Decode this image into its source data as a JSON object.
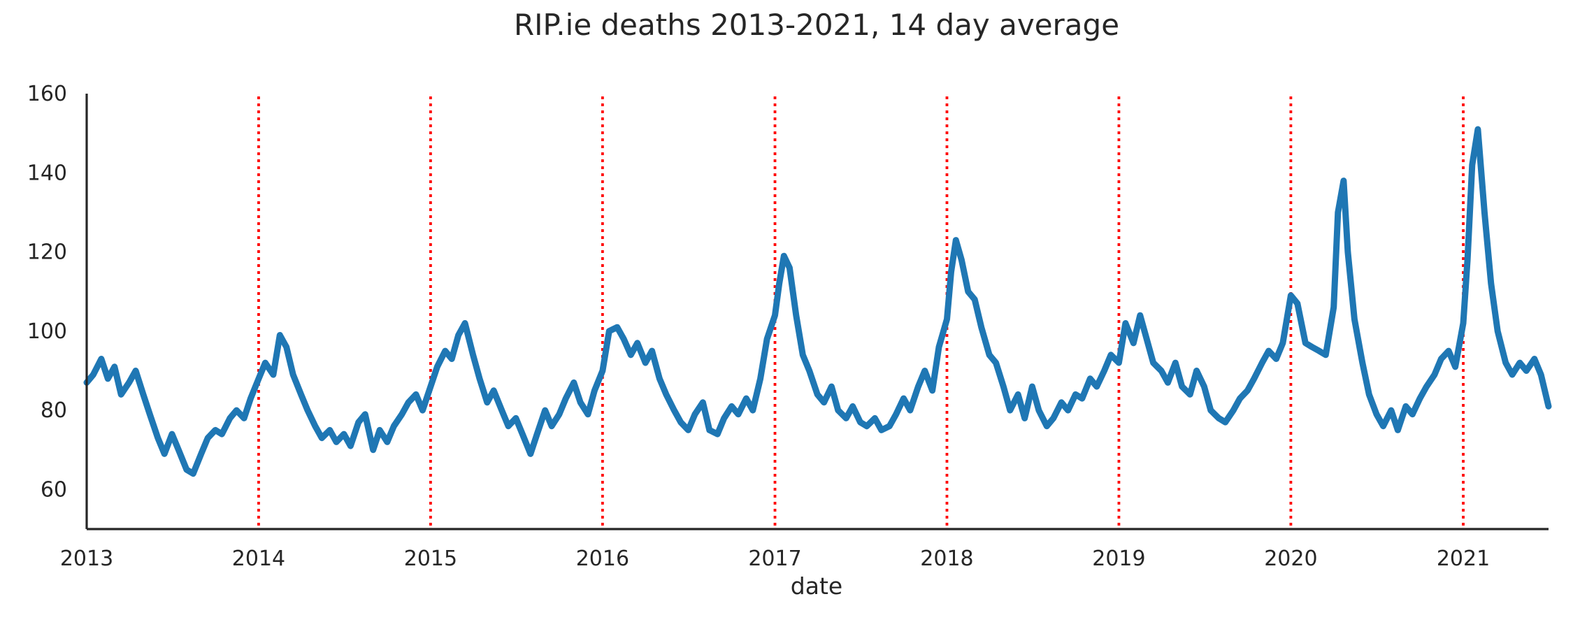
{
  "chart_data": {
    "type": "line",
    "title": "RIP.ie deaths 2013-2021, 14 day average",
    "xlabel": "date",
    "ylabel": "",
    "xlim": [
      "2013-01-01",
      "2021-07-01"
    ],
    "ylim": [
      50,
      160
    ],
    "x_ticks": [
      "2013",
      "2014",
      "2015",
      "2016",
      "2017",
      "2018",
      "2019",
      "2020",
      "2021"
    ],
    "y_ticks": [
      60,
      80,
      100,
      120,
      140,
      160
    ],
    "grid": false,
    "legend": "none",
    "line_color": "#1f77b4",
    "vline_color": "#ff0000",
    "vlines": [
      "2014-01-01",
      "2015-01-01",
      "2016-01-01",
      "2017-01-01",
      "2018-01-01",
      "2019-01-01",
      "2020-01-01",
      "2021-01-01"
    ],
    "series": [
      {
        "points": [
          [
            "2013-01-01",
            87
          ],
          [
            "2013-01-15",
            89
          ],
          [
            "2013-02-01",
            93
          ],
          [
            "2013-02-15",
            88
          ],
          [
            "2013-03-01",
            91
          ],
          [
            "2013-03-15",
            84
          ],
          [
            "2013-04-01",
            87
          ],
          [
            "2013-04-15",
            90
          ],
          [
            "2013-05-01",
            84
          ],
          [
            "2013-05-15",
            79
          ],
          [
            "2013-06-01",
            73
          ],
          [
            "2013-06-15",
            69
          ],
          [
            "2013-07-01",
            74
          ],
          [
            "2013-07-15",
            70
          ],
          [
            "2013-08-01",
            65
          ],
          [
            "2013-08-15",
            64
          ],
          [
            "2013-09-01",
            69
          ],
          [
            "2013-09-15",
            73
          ],
          [
            "2013-10-01",
            75
          ],
          [
            "2013-10-15",
            74
          ],
          [
            "2013-11-01",
            78
          ],
          [
            "2013-11-15",
            80
          ],
          [
            "2013-12-01",
            78
          ],
          [
            "2013-12-15",
            83
          ],
          [
            "2014-01-01",
            88
          ],
          [
            "2014-01-15",
            92
          ],
          [
            "2014-02-01",
            89
          ],
          [
            "2014-02-15",
            99
          ],
          [
            "2014-03-01",
            96
          ],
          [
            "2014-03-15",
            89
          ],
          [
            "2014-04-01",
            84
          ],
          [
            "2014-04-15",
            80
          ],
          [
            "2014-05-01",
            76
          ],
          [
            "2014-05-15",
            73
          ],
          [
            "2014-06-01",
            75
          ],
          [
            "2014-06-15",
            72
          ],
          [
            "2014-07-01",
            74
          ],
          [
            "2014-07-15",
            71
          ],
          [
            "2014-08-01",
            77
          ],
          [
            "2014-08-15",
            79
          ],
          [
            "2014-09-01",
            70
          ],
          [
            "2014-09-15",
            75
          ],
          [
            "2014-10-01",
            72
          ],
          [
            "2014-10-15",
            76
          ],
          [
            "2014-11-01",
            79
          ],
          [
            "2014-11-15",
            82
          ],
          [
            "2014-12-01",
            84
          ],
          [
            "2014-12-15",
            80
          ],
          [
            "2015-01-01",
            86
          ],
          [
            "2015-01-15",
            91
          ],
          [
            "2015-02-01",
            95
          ],
          [
            "2015-02-15",
            93
          ],
          [
            "2015-03-01",
            99
          ],
          [
            "2015-03-15",
            102
          ],
          [
            "2015-04-01",
            94
          ],
          [
            "2015-04-15",
            88
          ],
          [
            "2015-05-01",
            82
          ],
          [
            "2015-05-15",
            85
          ],
          [
            "2015-06-01",
            80
          ],
          [
            "2015-06-15",
            76
          ],
          [
            "2015-07-01",
            78
          ],
          [
            "2015-07-15",
            74
          ],
          [
            "2015-08-01",
            69
          ],
          [
            "2015-08-15",
            74
          ],
          [
            "2015-09-01",
            80
          ],
          [
            "2015-09-15",
            76
          ],
          [
            "2015-10-01",
            79
          ],
          [
            "2015-10-15",
            83
          ],
          [
            "2015-11-01",
            87
          ],
          [
            "2015-11-15",
            82
          ],
          [
            "2015-12-01",
            79
          ],
          [
            "2015-12-15",
            85
          ],
          [
            "2016-01-01",
            90
          ],
          [
            "2016-01-15",
            100
          ],
          [
            "2016-02-01",
            101
          ],
          [
            "2016-02-15",
            98
          ],
          [
            "2016-03-01",
            94
          ],
          [
            "2016-03-15",
            97
          ],
          [
            "2016-04-01",
            92
          ],
          [
            "2016-04-15",
            95
          ],
          [
            "2016-05-01",
            88
          ],
          [
            "2016-05-15",
            84
          ],
          [
            "2016-06-01",
            80
          ],
          [
            "2016-06-15",
            77
          ],
          [
            "2016-07-01",
            75
          ],
          [
            "2016-07-15",
            79
          ],
          [
            "2016-08-01",
            82
          ],
          [
            "2016-08-15",
            75
          ],
          [
            "2016-09-01",
            74
          ],
          [
            "2016-09-15",
            78
          ],
          [
            "2016-10-01",
            81
          ],
          [
            "2016-10-15",
            79
          ],
          [
            "2016-11-01",
            83
          ],
          [
            "2016-11-15",
            80
          ],
          [
            "2016-12-01",
            88
          ],
          [
            "2016-12-15",
            98
          ],
          [
            "2017-01-01",
            104
          ],
          [
            "2017-01-10",
            112
          ],
          [
            "2017-01-20",
            119
          ],
          [
            "2017-02-01",
            116
          ],
          [
            "2017-02-15",
            104
          ],
          [
            "2017-03-01",
            94
          ],
          [
            "2017-03-15",
            90
          ],
          [
            "2017-04-01",
            84
          ],
          [
            "2017-04-15",
            82
          ],
          [
            "2017-05-01",
            86
          ],
          [
            "2017-05-15",
            80
          ],
          [
            "2017-06-01",
            78
          ],
          [
            "2017-06-15",
            81
          ],
          [
            "2017-07-01",
            77
          ],
          [
            "2017-07-15",
            76
          ],
          [
            "2017-08-01",
            78
          ],
          [
            "2017-08-15",
            75
          ],
          [
            "2017-09-01",
            76
          ],
          [
            "2017-09-15",
            79
          ],
          [
            "2017-10-01",
            83
          ],
          [
            "2017-10-15",
            80
          ],
          [
            "2017-11-01",
            86
          ],
          [
            "2017-11-15",
            90
          ],
          [
            "2017-12-01",
            85
          ],
          [
            "2017-12-15",
            96
          ],
          [
            "2018-01-01",
            103
          ],
          [
            "2018-01-10",
            115
          ],
          [
            "2018-01-20",
            123
          ],
          [
            "2018-02-01",
            118
          ],
          [
            "2018-02-15",
            110
          ],
          [
            "2018-03-01",
            108
          ],
          [
            "2018-03-15",
            101
          ],
          [
            "2018-04-01",
            94
          ],
          [
            "2018-04-15",
            92
          ],
          [
            "2018-05-01",
            86
          ],
          [
            "2018-05-15",
            80
          ],
          [
            "2018-06-01",
            84
          ],
          [
            "2018-06-15",
            78
          ],
          [
            "2018-07-01",
            86
          ],
          [
            "2018-07-15",
            80
          ],
          [
            "2018-08-01",
            76
          ],
          [
            "2018-08-15",
            78
          ],
          [
            "2018-09-01",
            82
          ],
          [
            "2018-09-15",
            80
          ],
          [
            "2018-10-01",
            84
          ],
          [
            "2018-10-15",
            83
          ],
          [
            "2018-11-01",
            88
          ],
          [
            "2018-11-15",
            86
          ],
          [
            "2018-12-01",
            90
          ],
          [
            "2018-12-15",
            94
          ],
          [
            "2019-01-01",
            92
          ],
          [
            "2019-01-15",
            102
          ],
          [
            "2019-02-01",
            97
          ],
          [
            "2019-02-15",
            104
          ],
          [
            "2019-03-01",
            98
          ],
          [
            "2019-03-15",
            92
          ],
          [
            "2019-04-01",
            90
          ],
          [
            "2019-04-15",
            87
          ],
          [
            "2019-05-01",
            92
          ],
          [
            "2019-05-15",
            86
          ],
          [
            "2019-06-01",
            84
          ],
          [
            "2019-06-15",
            90
          ],
          [
            "2019-07-01",
            86
          ],
          [
            "2019-07-15",
            80
          ],
          [
            "2019-08-01",
            78
          ],
          [
            "2019-08-15",
            77
          ],
          [
            "2019-09-01",
            80
          ],
          [
            "2019-09-15",
            83
          ],
          [
            "2019-10-01",
            85
          ],
          [
            "2019-10-15",
            88
          ],
          [
            "2019-11-01",
            92
          ],
          [
            "2019-11-15",
            95
          ],
          [
            "2019-12-01",
            93
          ],
          [
            "2019-12-15",
            97
          ],
          [
            "2020-01-01",
            109
          ],
          [
            "2020-01-15",
            107
          ],
          [
            "2020-02-01",
            97
          ],
          [
            "2020-02-15",
            96
          ],
          [
            "2020-03-01",
            95
          ],
          [
            "2020-03-15",
            94
          ],
          [
            "2020-04-01",
            106
          ],
          [
            "2020-04-10",
            130
          ],
          [
            "2020-04-22",
            138
          ],
          [
            "2020-05-01",
            120
          ],
          [
            "2020-05-15",
            103
          ],
          [
            "2020-06-01",
            92
          ],
          [
            "2020-06-15",
            84
          ],
          [
            "2020-07-01",
            79
          ],
          [
            "2020-07-15",
            76
          ],
          [
            "2020-08-01",
            80
          ],
          [
            "2020-08-15",
            75
          ],
          [
            "2020-09-01",
            81
          ],
          [
            "2020-09-15",
            79
          ],
          [
            "2020-10-01",
            83
          ],
          [
            "2020-10-15",
            86
          ],
          [
            "2020-11-01",
            89
          ],
          [
            "2020-11-15",
            93
          ],
          [
            "2020-12-01",
            95
          ],
          [
            "2020-12-15",
            91
          ],
          [
            "2021-01-01",
            102
          ],
          [
            "2021-01-10",
            118
          ],
          [
            "2021-01-20",
            142
          ],
          [
            "2021-02-01",
            151
          ],
          [
            "2021-02-15",
            130
          ],
          [
            "2021-03-01",
            112
          ],
          [
            "2021-03-15",
            100
          ],
          [
            "2021-04-01",
            92
          ],
          [
            "2021-04-15",
            89
          ],
          [
            "2021-05-01",
            92
          ],
          [
            "2021-05-15",
            90
          ],
          [
            "2021-06-01",
            93
          ],
          [
            "2021-06-15",
            89
          ],
          [
            "2021-07-01",
            81
          ]
        ]
      }
    ]
  }
}
